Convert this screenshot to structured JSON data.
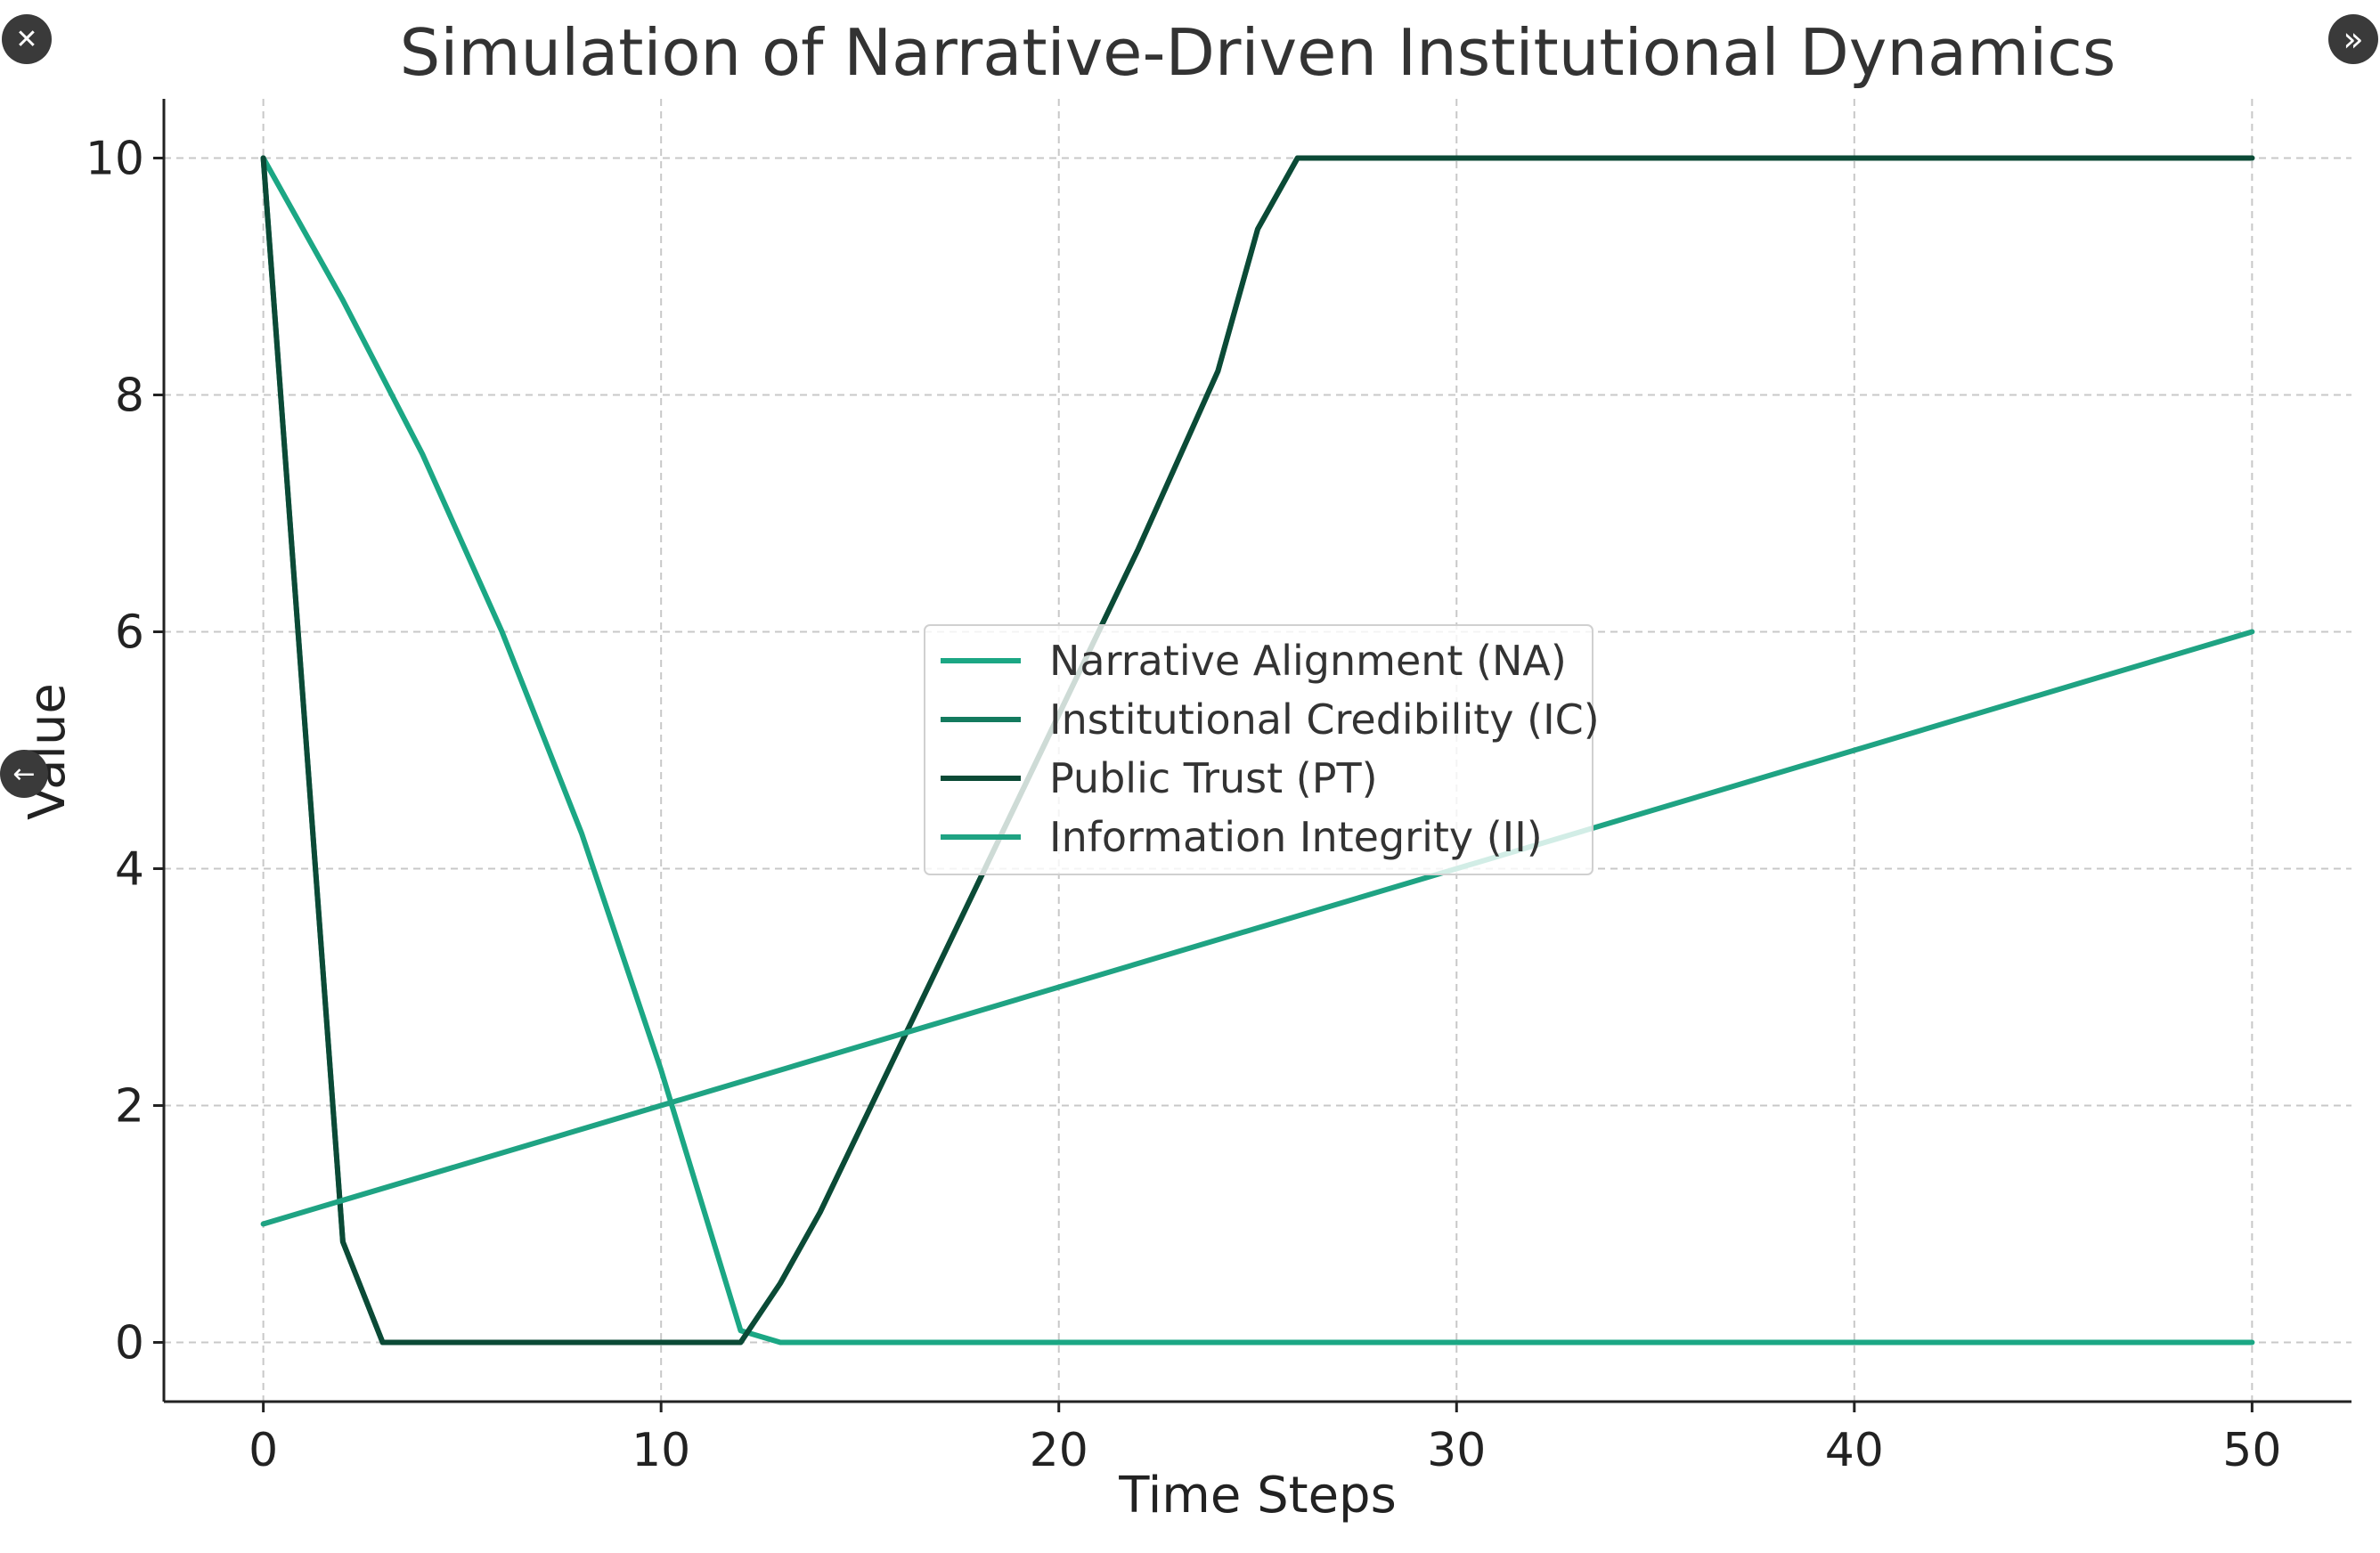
{
  "overlay": {
    "close_glyph": "✕",
    "expand_glyph": "»",
    "back_glyph": "←"
  },
  "chart_data": {
    "type": "line",
    "title": "Simulation of Narrative-Driven Institutional Dynamics",
    "xlabel": "Time Steps",
    "ylabel": "Value",
    "xlim": [
      -2.5,
      52.5
    ],
    "ylim": [
      -0.5,
      10.5
    ],
    "xticks": [
      0,
      10,
      20,
      30,
      40,
      50
    ],
    "yticks": [
      0,
      2,
      4,
      6,
      8,
      10
    ],
    "grid": true,
    "legend_position": "center",
    "series": [
      {
        "name": "Narrative Alignment (NA)",
        "color": "#1ba784",
        "x": [
          0,
          2,
          4,
          6,
          8,
          10,
          11,
          12,
          13,
          50
        ],
        "y": [
          10,
          8.8,
          7.5,
          6.0,
          4.3,
          2.3,
          1.2,
          0.1,
          0,
          0
        ]
      },
      {
        "name": "Institutional Credibility (IC)",
        "color": "#137a5e",
        "x": [
          0,
          2,
          3,
          12,
          13,
          14,
          16,
          18,
          20,
          22,
          24,
          25,
          26,
          50
        ],
        "y": [
          10,
          0.85,
          0,
          0,
          0.5,
          1.1,
          2.5,
          3.9,
          5.3,
          6.7,
          8.2,
          9.4,
          10,
          10
        ]
      },
      {
        "name": "Public Trust (PT)",
        "color": "#0b4a36",
        "x": [
          0,
          2,
          3,
          12,
          13,
          14,
          16,
          18,
          20,
          22,
          24,
          25,
          26,
          50
        ],
        "y": [
          10,
          0.85,
          0,
          0,
          0.5,
          1.1,
          2.5,
          3.9,
          5.3,
          6.7,
          8.2,
          9.4,
          10,
          10
        ]
      },
      {
        "name": "Information Integrity (II)",
        "color": "#1fa383",
        "x": [
          0,
          50
        ],
        "y": [
          1,
          6
        ]
      }
    ]
  }
}
